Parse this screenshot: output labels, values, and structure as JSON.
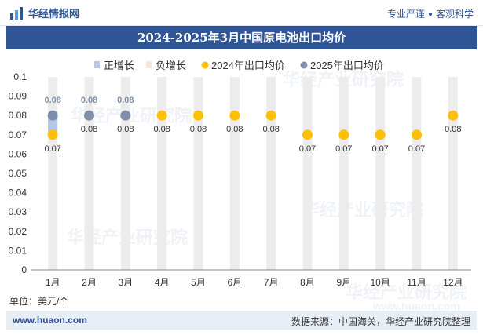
{
  "header": {
    "brand": "华经情报网",
    "slogan_left": "专业严谨",
    "slogan_right": "客观科学"
  },
  "watermarks": [
    "华经产业研究院",
    "华经产业研究院",
    "华经产业研究院",
    "华经产业研究院",
    "华经产业研究院"
  ],
  "watermark_url": "www.huaon.com",
  "unit_label": "单位：美元/个",
  "footer": {
    "url": "www.huaon.com",
    "source": "数据来源：中国海关，华经产业研究院整理"
  },
  "colors": {
    "header_blue": "#2f5597",
    "bar_pos": "#b4c7e7",
    "bar_neg": "#fbe5d6",
    "series_2024": "#ffc000",
    "series_2025": "#7f8fa9",
    "bg_bar": "#ececec"
  },
  "chart_data": {
    "type": "scatter",
    "title": "2024-2025年3月中国原电池出口均价",
    "categories": [
      "1月",
      "2月",
      "3月",
      "4月",
      "5月",
      "6月",
      "7月",
      "8月",
      "9月",
      "10月",
      "11月",
      "12月"
    ],
    "ylim": [
      0,
      0.1
    ],
    "yticks": [
      "0",
      "0.01",
      "0.02",
      "0.03",
      "0.04",
      "0.05",
      "0.06",
      "0.07",
      "0.08",
      "0.09",
      "0.1"
    ],
    "legend_position": "top",
    "legend": [
      "正增长",
      "负增长",
      "2024年出口均价",
      "2025年出口均价"
    ],
    "series": [
      {
        "name": "2024年出口均价",
        "values": [
          0.07,
          0.08,
          0.08,
          0.08,
          0.08,
          0.08,
          0.08,
          0.07,
          0.07,
          0.07,
          0.07,
          0.08
        ],
        "labels": [
          "0.07",
          "0.08",
          "0.08",
          "0.08",
          "0.08",
          "0.08",
          "0.08",
          "0.07",
          "0.07",
          "0.07",
          "0.07",
          "0.08"
        ]
      },
      {
        "name": "2025年出口均价",
        "values": [
          0.08,
          0.08,
          0.08,
          null,
          null,
          null,
          null,
          null,
          null,
          null,
          null,
          null
        ],
        "labels": [
          "0.08",
          "0.08",
          "0.08"
        ]
      }
    ],
    "growth_bars": {
      "positive": [
        0.01,
        0,
        0
      ],
      "negative": [
        0,
        0,
        0
      ]
    }
  }
}
